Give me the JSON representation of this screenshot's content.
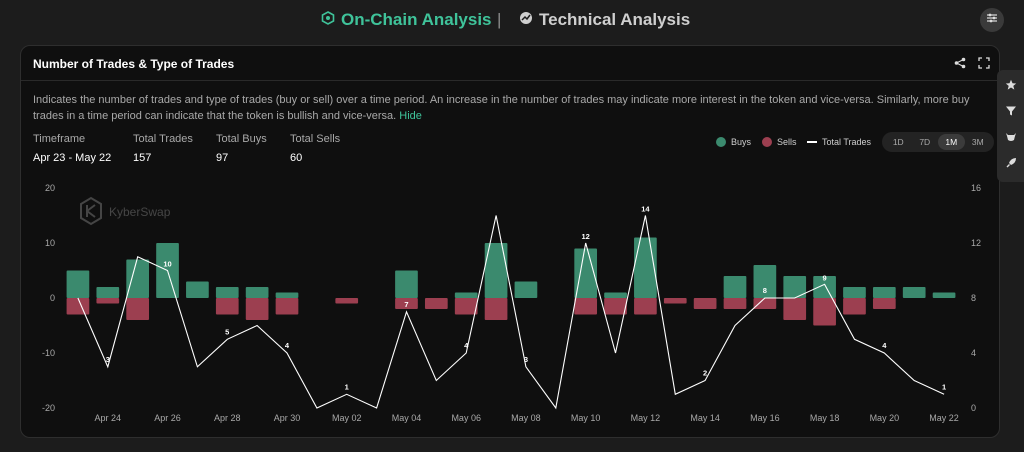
{
  "nav": {
    "onchain_label": "On-Chain Analysis",
    "technical_label": "Technical Analysis",
    "separator": "|"
  },
  "card": {
    "title": "Number of Trades & Type of Trades",
    "description": "Indicates the number of trades and type of trades (buy or sell) over a time period. An increase in the number of trades may indicate more interest in the token and vice-versa. Similarly, more buy trades in a time period can indicate that the token is bullish and vice-versa.",
    "hide_label": "Hide"
  },
  "stats": {
    "timeframe_label": "Timeframe",
    "timeframe_value": "Apr 23 - May 22",
    "total_trades_label": "Total Trades",
    "total_trades_value": "157",
    "total_buys_label": "Total Buys",
    "total_buys_value": "97",
    "total_sells_label": "Total Sells",
    "total_sells_value": "60"
  },
  "legend": {
    "buys": "Buys",
    "sells": "Sells",
    "total": "Total Trades"
  },
  "timeframes": [
    {
      "label": "1D",
      "active": false
    },
    {
      "label": "7D",
      "active": false
    },
    {
      "label": "1M",
      "active": true
    },
    {
      "label": "3M",
      "active": false
    }
  ],
  "watermark": "KyberSwap",
  "colors": {
    "buys": "#3b8a6e",
    "sells": "#9c3f50",
    "total": "#ffffff",
    "accent": "#3fc39a"
  },
  "chart_data": {
    "type": "bar",
    "left_axis": {
      "ticks": [
        "20",
        "10",
        "0",
        "-10",
        "-20"
      ],
      "range": [
        -20,
        20
      ]
    },
    "right_axis": {
      "ticks": [
        "16",
        "12",
        "8",
        "4",
        "0"
      ],
      "range": [
        0,
        16
      ]
    },
    "x_labels": [
      "Apr 24",
      "Apr 26",
      "Apr 28",
      "Apr 30",
      "May 02",
      "May 04",
      "May 06",
      "May 08",
      "May 10",
      "May 12",
      "May 14",
      "May 16",
      "May 18",
      "May 20",
      "May 22"
    ],
    "series": [
      {
        "name": "Buys",
        "values": [
          5,
          2,
          7,
          10,
          3,
          2,
          2,
          1,
          0,
          0,
          0,
          5,
          0,
          1,
          10,
          3,
          0,
          9,
          1,
          11,
          0,
          0,
          4,
          6,
          4,
          4,
          2,
          2,
          2,
          1
        ]
      },
      {
        "name": "Sells",
        "values": [
          -3,
          -1,
          -4,
          0,
          0,
          -3,
          -4,
          -3,
          0,
          -1,
          0,
          -2,
          -2,
          -3,
          -4,
          0,
          0,
          -3,
          -3,
          -3,
          -1,
          -2,
          -2,
          -2,
          -4,
          -5,
          -3,
          -2,
          0,
          0
        ]
      },
      {
        "name": "Total Trades",
        "values": [
          8,
          3,
          11,
          10,
          3,
          5,
          6,
          4,
          0,
          1,
          0,
          7,
          2,
          4,
          14,
          3,
          0,
          12,
          4,
          14,
          1,
          2,
          6,
          8,
          8,
          9,
          5,
          4,
          2,
          1
        ]
      }
    ],
    "point_labels": [
      {
        "index": 1,
        "text": "3"
      },
      {
        "index": 3,
        "text": "10"
      },
      {
        "index": 5,
        "text": "5"
      },
      {
        "index": 7,
        "text": "4"
      },
      {
        "index": 9,
        "text": "1"
      },
      {
        "index": 11,
        "text": "7"
      },
      {
        "index": 13,
        "text": "4"
      },
      {
        "index": 15,
        "text": "3"
      },
      {
        "index": 17,
        "text": "12"
      },
      {
        "index": 19,
        "text": "14"
      },
      {
        "index": 21,
        "text": "2"
      },
      {
        "index": 23,
        "text": "8"
      },
      {
        "index": 25,
        "text": "9"
      },
      {
        "index": 27,
        "text": "4"
      },
      {
        "index": 29,
        "text": "1"
      }
    ]
  }
}
